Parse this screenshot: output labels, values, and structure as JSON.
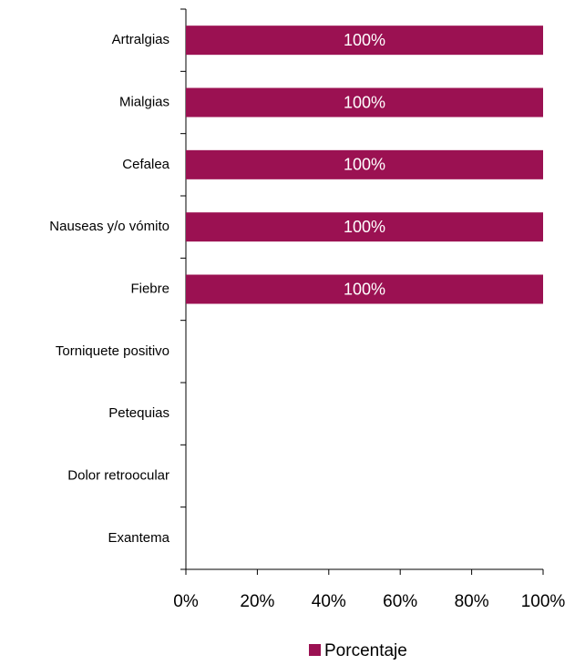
{
  "chart_data": {
    "type": "barh",
    "categories": [
      "Artralgias",
      "Mialgias",
      "Cefalea",
      "Nauseas y/o vómito",
      "Fiebre",
      "Torniquete positivo",
      "Petequias",
      "Dolor retroocular",
      "Exantema"
    ],
    "series": [
      {
        "name": "Porcentaje",
        "color": "#9b1152",
        "values": [
          100,
          100,
          100,
          100,
          100,
          0,
          0,
          0,
          0
        ],
        "value_labels": [
          "100%",
          "100%",
          "100%",
          "100%",
          "100%",
          null,
          null,
          null,
          null
        ]
      }
    ],
    "xlim": [
      0,
      100
    ],
    "xticks": [
      {
        "value": 0,
        "label": "0%"
      },
      {
        "value": 20,
        "label": "20%"
      },
      {
        "value": 40,
        "label": "40%"
      },
      {
        "value": 60,
        "label": "60%"
      },
      {
        "value": 80,
        "label": "80%"
      },
      {
        "value": 100,
        "label": "100%"
      }
    ],
    "legend": "bottom"
  }
}
